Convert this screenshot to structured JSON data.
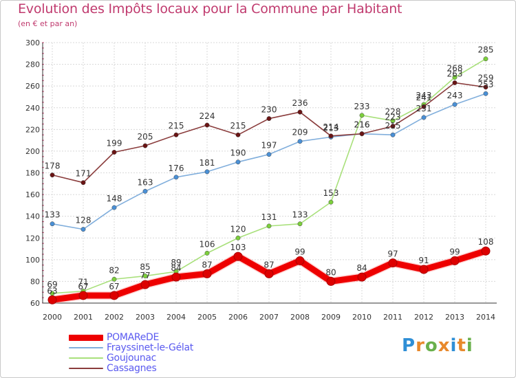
{
  "chart_data": {
    "type": "line",
    "title": "Evolution des Impôts locaux pour la Commune par Habitant",
    "subtitle": "(en € et par an)",
    "x": [
      "2000",
      "2001",
      "2002",
      "2003",
      "2004",
      "2005",
      "2006",
      "2007",
      "2008",
      "2009",
      "2010",
      "2011",
      "2012",
      "2013",
      "2014"
    ],
    "ylim": [
      60,
      300
    ],
    "yticks": [
      60,
      80,
      100,
      120,
      140,
      160,
      180,
      200,
      220,
      240,
      260,
      280,
      300
    ],
    "grid": true,
    "legend_position": "bottom-left",
    "series": [
      {
        "name": "POMAReDE",
        "color": "#ee0000",
        "emphasis": true,
        "values": [
          63,
          67,
          67,
          77,
          84,
          87,
          103,
          87,
          99,
          80,
          84,
          97,
          91,
          99,
          108
        ]
      },
      {
        "name": "Frayssinet-le-Gélat",
        "color": "#80aedc",
        "marker": "#4a90d6",
        "values": [
          133,
          128,
          148,
          163,
          176,
          181,
          190,
          197,
          209,
          213,
          216,
          215,
          231,
          243,
          253
        ]
      },
      {
        "name": "Goujounac",
        "color": "#a8e07a",
        "marker": "#7ccf3c",
        "values": [
          69,
          71,
          82,
          85,
          89,
          106,
          120,
          131,
          133,
          153,
          233,
          228,
          243,
          268,
          285
        ]
      },
      {
        "name": "Cassagnes",
        "color": "#8a3c3c",
        "marker": "#6a1414",
        "values": [
          178,
          171,
          199,
          205,
          215,
          224,
          215,
          230,
          236,
          214,
          216,
          223,
          241,
          263,
          259
        ]
      }
    ]
  },
  "logo": {
    "letters": [
      {
        "ch": "P",
        "color": "#2f8fd6"
      },
      {
        "ch": "r",
        "color": "#e8892c"
      },
      {
        "ch": "o",
        "color": "#6ab04c"
      },
      {
        "ch": "x",
        "color": "#e8892c"
      },
      {
        "ch": "i",
        "color": "#2f8fd6"
      },
      {
        "ch": "t",
        "color": "#e8892c"
      },
      {
        "ch": "i",
        "color": "#6ab04c"
      }
    ]
  }
}
